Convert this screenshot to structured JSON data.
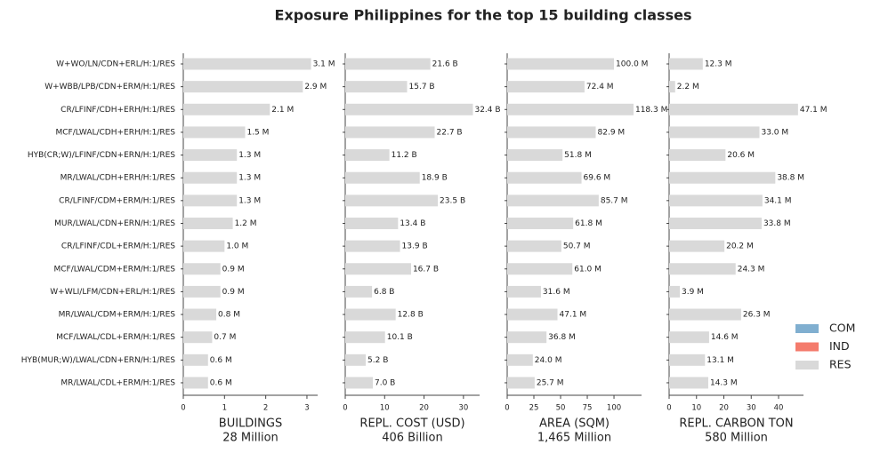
{
  "title": "Exposure Philippines for the top 15 building classes",
  "legend": [
    {
      "name": "COM",
      "color": "#80afd0"
    },
    {
      "name": "IND",
      "color": "#f47b6c"
    },
    {
      "name": "RES",
      "color": "#d9d9d9"
    }
  ],
  "chart_data": [
    {
      "type": "bar",
      "orientation": "horizontal",
      "xlabel": "BUILDINGS",
      "xlabel_total": "28 Million",
      "categories": [
        "W+WO/LN/CDN+ERL/H:1/RES",
        "W+WBB/LPB/CDN+ERM/H:1/RES",
        "CR/LFINF/CDH+ERH/H:1/RES",
        "MCF/LWAL/CDH+ERH/H:1/RES",
        "HYB(CR;W)/LFINF/CDN+ERN/H:1/RES",
        "MR/LWAL/CDH+ERH/H:1/RES",
        "CR/LFINF/CDM+ERM/H:1/RES",
        "MUR/LWAL/CDN+ERN/H:1/RES",
        "CR/LFINF/CDL+ERM/H:1/RES",
        "MCF/LWAL/CDM+ERM/H:1/RES",
        "W+WLI/LFM/CDN+ERL/H:1/RES",
        "MR/LWAL/CDM+ERM/H:1/RES",
        "MCF/LWAL/CDL+ERM/H:1/RES",
        "HYB(MUR;W)/LWAL/CDN+ERN/H:1/RES",
        "MR/LWAL/CDL+ERM/H:1/RES"
      ],
      "series": [
        {
          "name": "RES",
          "color": "#d9d9d9",
          "values": [
            3.1,
            2.9,
            2.1,
            1.5,
            1.3,
            1.3,
            1.3,
            1.2,
            1.0,
            0.9,
            0.9,
            0.8,
            0.7,
            0.6,
            0.6
          ],
          "value_labels": [
            "3.1 M",
            "2.9 M",
            "2.1 M",
            "1.5 M",
            "1.3 M",
            "1.3 M",
            "1.3 M",
            "1.2 M",
            "1.0 M",
            "0.9 M",
            "0.9 M",
            "0.8 M",
            "0.7 M",
            "0.6 M",
            "0.6 M"
          ]
        }
      ],
      "xlim": [
        0,
        3.26
      ],
      "xticks": [
        0,
        1,
        2,
        3
      ]
    },
    {
      "type": "bar",
      "orientation": "horizontal",
      "xlabel": "REPL. COST (USD)",
      "xlabel_total": "406 Billion",
      "series": [
        {
          "name": "RES",
          "color": "#d9d9d9",
          "values": [
            21.6,
            15.7,
            32.4,
            22.7,
            11.2,
            18.9,
            23.5,
            13.4,
            13.9,
            16.7,
            6.8,
            12.8,
            10.1,
            5.2,
            7.0
          ],
          "value_labels": [
            "21.6 B",
            "15.7 B",
            "32.4 B",
            "22.7 B",
            "11.2 B",
            "18.9 B",
            "23.5 B",
            "13.4 B",
            "13.9 B",
            "16.7 B",
            "6.8 B",
            "12.8 B",
            "10.1 B",
            "5.2 B",
            "7.0 B"
          ]
        }
      ],
      "xlim": [
        0,
        34.1
      ],
      "xticks": [
        0,
        10,
        20,
        30
      ]
    },
    {
      "type": "bar",
      "orientation": "horizontal",
      "xlabel": "AREA (SQM)",
      "xlabel_total": "1,465 Million",
      "series": [
        {
          "name": "RES",
          "color": "#d9d9d9",
          "values": [
            100.0,
            72.4,
            118.3,
            82.9,
            51.8,
            69.6,
            85.7,
            61.8,
            50.7,
            61.0,
            31.6,
            47.1,
            36.8,
            24.0,
            25.7
          ],
          "value_labels": [
            "100.0 M",
            "72.4 M",
            "118.3 M",
            "82.9 M",
            "51.8 M",
            "69.6 M",
            "85.7 M",
            "61.8 M",
            "50.7 M",
            "61.0 M",
            "31.6 M",
            "47.1 M",
            "36.8 M",
            "24.0 M",
            "25.7 M"
          ]
        }
      ],
      "xlim": [
        0,
        125.8
      ],
      "xticks": [
        0,
        25,
        50,
        75,
        100
      ]
    },
    {
      "type": "bar",
      "orientation": "horizontal",
      "xlabel": "REPL. CARBON TON",
      "xlabel_total": "580 Million",
      "series": [
        {
          "name": "RES",
          "color": "#d9d9d9",
          "values": [
            12.3,
            2.2,
            47.1,
            33.0,
            20.6,
            38.8,
            34.1,
            33.8,
            20.2,
            24.3,
            3.9,
            26.3,
            14.6,
            13.1,
            14.3
          ],
          "value_labels": [
            "12.3 M",
            "2.2 M",
            "47.1 M",
            "33.0 M",
            "20.6 M",
            "38.8 M",
            "34.1 M",
            "33.8 M",
            "20.2 M",
            "24.3 M",
            "3.9 M",
            "26.3 M",
            "14.6 M",
            "13.1 M",
            "14.3 M"
          ]
        }
      ],
      "xlim": [
        0,
        49.1
      ],
      "xticks": [
        0,
        10,
        20,
        30,
        40
      ]
    }
  ]
}
